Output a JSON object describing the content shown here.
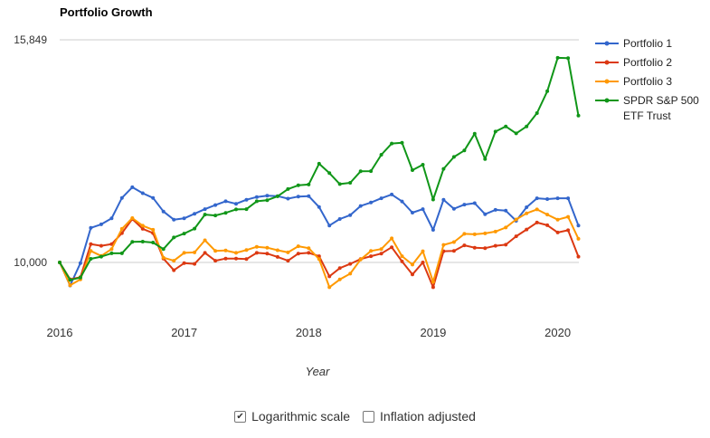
{
  "chart_data": {
    "type": "line",
    "title": "Portfolio Growth",
    "xlabel": "Year",
    "ylabel": "",
    "yscale": "log",
    "ylim": [
      9500,
      15849
    ],
    "y_ticks": [
      {
        "value": 10000,
        "label": "10,000"
      },
      {
        "value": 15849,
        "label": "15,849"
      }
    ],
    "x_ticks": [
      {
        "value": 2016,
        "label": "2016"
      },
      {
        "value": 2017,
        "label": "2017"
      },
      {
        "value": 2018,
        "label": "2018"
      },
      {
        "value": 2019,
        "label": "2019"
      },
      {
        "value": 2020,
        "label": "2020"
      }
    ],
    "xlim": [
      2016,
      2020.17
    ],
    "grid": true,
    "legend_position": "right",
    "series": [
      {
        "name": "Portfolio 1",
        "color": "#3366cc",
        "values": [
          10000,
          9533,
          9985,
          10741,
          10821,
          10954,
          11428,
          11683,
          11540,
          11428,
          11112,
          10925,
          10954,
          11060,
          11165,
          11260,
          11350,
          11290,
          11385,
          11450,
          11480,
          11470,
          11410,
          11460,
          11470,
          11214,
          10794,
          10940,
          11028,
          11240,
          11320,
          11420,
          11510,
          11345,
          11085,
          11165,
          10698,
          11385,
          11175,
          11270,
          11305,
          11050,
          11150,
          11130,
          10900,
          11210,
          11420,
          11400,
          11420,
          11420,
          10794
        ]
      },
      {
        "name": "Portfolio 2",
        "color": "#dc3912",
        "values": [
          10000,
          9658,
          9700,
          10385,
          10350,
          10385,
          10625,
          10940,
          10720,
          10625,
          10080,
          9840,
          9985,
          9970,
          10200,
          10035,
          10080,
          10080,
          10070,
          10200,
          10185,
          10115,
          10035,
          10185,
          10200,
          10130,
          9715,
          9883,
          9970,
          10070,
          10130,
          10185,
          10320,
          10020,
          9755,
          10000,
          9500,
          10235,
          10240,
          10360,
          10310,
          10300,
          10350,
          10374,
          10555,
          10705,
          10860,
          10800,
          10640,
          10690,
          10120
        ]
      },
      {
        "name": "Portfolio 3",
        "color": "#ff9900",
        "values": [
          10000,
          9540,
          9655,
          10240,
          10135,
          10280,
          10720,
          10960,
          10790,
          10700,
          10100,
          10035,
          10200,
          10210,
          10470,
          10240,
          10250,
          10200,
          10260,
          10330,
          10310,
          10255,
          10210,
          10340,
          10300,
          10070,
          9500,
          9655,
          9770,
          10060,
          10240,
          10280,
          10510,
          10130,
          9955,
          10235,
          9605,
          10370,
          10430,
          10610,
          10600,
          10620,
          10660,
          10750,
          10930,
          11070,
          11160,
          11040,
          10925,
          10990,
          10500
        ]
      },
      {
        "name": "SPDR S&P 500 ETF Trust",
        "color": "#109618",
        "values": [
          10000,
          9645,
          9690,
          10075,
          10120,
          10190,
          10190,
          10435,
          10440,
          10420,
          10280,
          10530,
          10615,
          10725,
          11040,
          11020,
          11080,
          11160,
          11165,
          11350,
          11375,
          11466,
          11640,
          11730,
          11750,
          12265,
          12030,
          11760,
          11790,
          12075,
          12080,
          12495,
          12790,
          12810,
          12105,
          12240,
          11390,
          12135,
          12440,
          12605,
          13050,
          12385,
          13110,
          13250,
          13060,
          13250,
          13620,
          14250,
          15270,
          15260,
          13550
        ]
      }
    ]
  },
  "legend": [
    {
      "label": "Portfolio 1",
      "color": "#3366cc"
    },
    {
      "label": "Portfolio 2",
      "color": "#dc3912"
    },
    {
      "label": "Portfolio 3",
      "color": "#ff9900"
    },
    {
      "label_lines": [
        "SPDR S&P 500",
        "ETF Trust"
      ],
      "color": "#109618"
    }
  ],
  "controls": {
    "log_scale": {
      "label": "Logarithmic scale",
      "checked": true
    },
    "inflation": {
      "label": "Inflation adjusted",
      "checked": false
    }
  }
}
